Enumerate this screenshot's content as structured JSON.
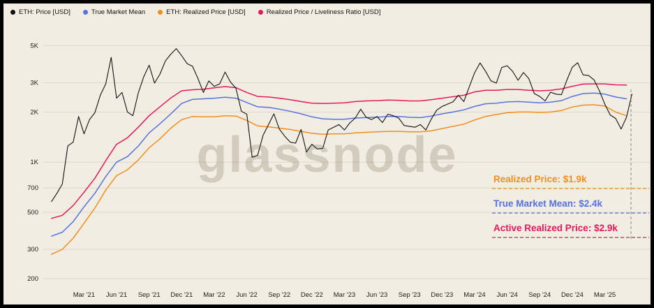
{
  "watermark": "glassnode",
  "colors": {
    "background": "#f2ede2",
    "frame": "#000000",
    "grid": "#ddd7c9",
    "axis_text": "#1c1c1c",
    "marker": "#8a8578",
    "price": "#111111",
    "true_market_mean": "#5572dd",
    "realized_price": "#ef8e1f",
    "active_realized_price": "#e2195c"
  },
  "legend": [
    {
      "label": "ETH: Price [USD]",
      "color_key": "price"
    },
    {
      "label": "True Market Mean",
      "color_key": "true_market_mean"
    },
    {
      "label": "ETH: Realized Price [USD]",
      "color_key": "realized_price"
    },
    {
      "label": "Realized Price / Liveliness Ratio [USD]",
      "color_key": "active_realized_price"
    }
  ],
  "annotations": [
    {
      "label": "Realized Price: $1.9k",
      "color_key": "realized_price"
    },
    {
      "label": "True Market Mean: $2.4k",
      "color_key": "true_market_mean"
    },
    {
      "label": "Active Realized Price: $2.9k",
      "color_key": "active_realized_price"
    }
  ],
  "chart_data": {
    "type": "line",
    "title": "",
    "xlabel": "",
    "ylabel": "",
    "x_axis": {
      "unit": "date (decimal years)",
      "range": [
        2020.87,
        2025.4
      ],
      "tick_labels": [
        "Mar '21",
        "Jun '21",
        "Sep '21",
        "Dec '21",
        "Mar '22",
        "Jun '22",
        "Sep '22",
        "Dec '22",
        "Mar '23",
        "Jun '23",
        "Sep '23",
        "Dec '23",
        "Mar '24",
        "Jun '24",
        "Sep '24",
        "Dec '24",
        "Mar '25"
      ],
      "tick_x": [
        2021.167,
        2021.417,
        2021.667,
        2021.917,
        2022.167,
        2022.417,
        2022.667,
        2022.917,
        2023.167,
        2023.417,
        2023.667,
        2023.917,
        2024.167,
        2024.417,
        2024.667,
        2024.917,
        2025.167
      ]
    },
    "y_axis": {
      "scale": "log",
      "unit": "USD",
      "range": [
        200,
        5800
      ],
      "tick_labels": [
        "5K",
        "3K",
        "2K",
        "1K",
        "700",
        "500",
        "300",
        "200"
      ],
      "tick_values": [
        5000,
        3000,
        2000,
        1000,
        700,
        500,
        300,
        200
      ]
    },
    "grid": "horizontal-only",
    "legend_position": "top-left",
    "series": [
      {
        "id": "realized-price",
        "name": "ETH: Realized Price [USD]",
        "color_key": "realized_price",
        "x_start": 2020.917,
        "x_step": 0.0833333,
        "values": [
          280,
          300,
          350,
          430,
          530,
          680,
          830,
          900,
          1030,
          1220,
          1380,
          1600,
          1800,
          1880,
          1870,
          1870,
          1900,
          1890,
          1780,
          1650,
          1630,
          1600,
          1570,
          1530,
          1490,
          1470,
          1480,
          1480,
          1500,
          1510,
          1520,
          1530,
          1530,
          1520,
          1520,
          1540,
          1590,
          1640,
          1690,
          1790,
          1880,
          1930,
          1980,
          2000,
          2000,
          1990,
          2000,
          2040,
          2140,
          2200,
          2210,
          2170,
          2000,
          1900
        ]
      },
      {
        "id": "true-market-mean",
        "name": "True Market Mean",
        "color_key": "true_market_mean",
        "x_start": 2020.917,
        "x_step": 0.0833333,
        "values": [
          360,
          380,
          440,
          540,
          650,
          820,
          1000,
          1080,
          1250,
          1500,
          1700,
          1950,
          2250,
          2380,
          2400,
          2420,
          2450,
          2420,
          2280,
          2150,
          2130,
          2080,
          2020,
          1950,
          1870,
          1820,
          1810,
          1810,
          1840,
          1850,
          1860,
          1880,
          1880,
          1860,
          1850,
          1890,
          1950,
          2000,
          2060,
          2160,
          2240,
          2260,
          2300,
          2310,
          2290,
          2270,
          2290,
          2340,
          2480,
          2580,
          2600,
          2560,
          2460,
          2400
        ]
      },
      {
        "id": "active-realized-price",
        "name": "Realized Price / Liveliness Ratio [USD]",
        "color_key": "active_realized_price",
        "x_start": 2020.917,
        "x_step": 0.0833333,
        "values": [
          460,
          480,
          550,
          660,
          800,
          1020,
          1280,
          1400,
          1620,
          1900,
          2150,
          2430,
          2680,
          2720,
          2740,
          2790,
          2840,
          2800,
          2620,
          2480,
          2460,
          2420,
          2370,
          2310,
          2260,
          2250,
          2260,
          2270,
          2310,
          2330,
          2340,
          2360,
          2350,
          2330,
          2330,
          2370,
          2420,
          2470,
          2520,
          2640,
          2700,
          2700,
          2730,
          2730,
          2700,
          2680,
          2700,
          2750,
          2850,
          2940,
          2950,
          2950,
          2910,
          2900
        ]
      },
      {
        "id": "eth-price",
        "name": "ETH: Price [USD]",
        "color_key": "price",
        "x_start": 2020.917,
        "x_step": 0.0416667,
        "values": [
          580,
          650,
          740,
          1250,
          1320,
          1880,
          1480,
          1800,
          1980,
          2520,
          2950,
          4250,
          2420,
          2620,
          2000,
          1900,
          2600,
          3250,
          3820,
          2980,
          3380,
          4050,
          4450,
          4800,
          4350,
          3900,
          3760,
          3180,
          2620,
          3070,
          2850,
          2950,
          3470,
          3020,
          2780,
          2020,
          1940,
          1070,
          1100,
          1450,
          1680,
          1950,
          1580,
          1430,
          1320,
          1300,
          1570,
          1150,
          1280,
          1200,
          1210,
          1560,
          1620,
          1680,
          1560,
          1720,
          1840,
          2080,
          1860,
          1800,
          1880,
          1730,
          1940,
          1900,
          1840,
          1660,
          1640,
          1620,
          1680,
          1560,
          1810,
          2050,
          2160,
          2230,
          2300,
          2520,
          2310,
          2820,
          3440,
          3940,
          3520,
          3080,
          2980,
          3700,
          3790,
          3510,
          3100,
          3450,
          3170,
          2580,
          2480,
          2330,
          2630,
          2560,
          2540,
          3100,
          3710,
          3950,
          3340,
          3310,
          3120,
          2680,
          2230,
          1920,
          1830,
          1580,
          1860,
          2560
        ]
      }
    ],
    "end_value_callouts": [
      {
        "series": "realized-price",
        "text": "Realized Price: $1.9k",
        "value_usd": 1900
      },
      {
        "series": "true-market-mean",
        "text": "True Market Mean: $2.4k",
        "value_usd": 2400
      },
      {
        "series": "active-realized-price",
        "text": "Active Realized Price: $2.9k",
        "value_usd": 2900
      }
    ]
  }
}
